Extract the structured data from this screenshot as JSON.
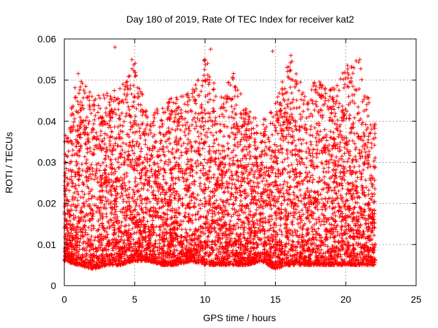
{
  "chart_data": {
    "type": "scatter",
    "title": "Day 180 of 2019, Rate Of TEC Index for receiver kat2",
    "xlabel": "GPS time / hours",
    "ylabel": "ROTI / TECUs",
    "xlim": [
      0,
      25
    ],
    "ylim": [
      0,
      0.06
    ],
    "xticks": [
      0,
      5,
      10,
      15,
      20,
      25
    ],
    "yticks": [
      0,
      0.01,
      0.02,
      0.03,
      0.04,
      0.05,
      0.06
    ],
    "xtick_labels": [
      "0",
      "5",
      "10",
      "15",
      "20",
      "25"
    ],
    "ytick_labels": [
      "0",
      "0.01",
      "0.02",
      "0.03",
      "0.04",
      "0.05",
      "0.06"
    ],
    "grid": true,
    "marker": "+",
    "series": [
      {
        "name": "ROTI",
        "color": "#ff0000",
        "x_range": [
          0,
          22.1
        ],
        "hourly_envelope": [
          {
            "hour": 0.0,
            "low": 0.006,
            "high": 0.036
          },
          {
            "hour": 1.0,
            "low": 0.005,
            "high": 0.052
          },
          {
            "hour": 2.0,
            "low": 0.004,
            "high": 0.046
          },
          {
            "hour": 3.0,
            "low": 0.005,
            "high": 0.047
          },
          {
            "hour": 4.0,
            "low": 0.005,
            "high": 0.048
          },
          {
            "hour": 5.0,
            "low": 0.006,
            "high": 0.055
          },
          {
            "hour": 6.0,
            "low": 0.006,
            "high": 0.04
          },
          {
            "hour": 7.0,
            "low": 0.005,
            "high": 0.045
          },
          {
            "hour": 8.0,
            "low": 0.005,
            "high": 0.046
          },
          {
            "hour": 9.0,
            "low": 0.006,
            "high": 0.047
          },
          {
            "hour": 10.0,
            "low": 0.005,
            "high": 0.057
          },
          {
            "hour": 11.0,
            "low": 0.005,
            "high": 0.045
          },
          {
            "hour": 12.0,
            "low": 0.005,
            "high": 0.052
          },
          {
            "hour": 13.0,
            "low": 0.005,
            "high": 0.043
          },
          {
            "hour": 14.0,
            "low": 0.006,
            "high": 0.04
          },
          {
            "hour": 15.0,
            "low": 0.004,
            "high": 0.045
          },
          {
            "hour": 16.0,
            "low": 0.005,
            "high": 0.056
          },
          {
            "hour": 17.0,
            "low": 0.005,
            "high": 0.048
          },
          {
            "hour": 18.0,
            "low": 0.005,
            "high": 0.05
          },
          {
            "hour": 19.0,
            "low": 0.005,
            "high": 0.048
          },
          {
            "hour": 20.0,
            "low": 0.005,
            "high": 0.054
          },
          {
            "hour": 21.0,
            "low": 0.005,
            "high": 0.055
          },
          {
            "hour": 22.0,
            "low": 0.005,
            "high": 0.04
          }
        ],
        "outliers": [
          {
            "x": 3.6,
            "y": 0.058
          },
          {
            "x": 4.8,
            "y": 0.055
          },
          {
            "x": 10.4,
            "y": 0.0575
          },
          {
            "x": 14.8,
            "y": 0.057
          },
          {
            "x": 16.1,
            "y": 0.056
          },
          {
            "x": 21.0,
            "y": 0.055
          }
        ]
      }
    ]
  }
}
